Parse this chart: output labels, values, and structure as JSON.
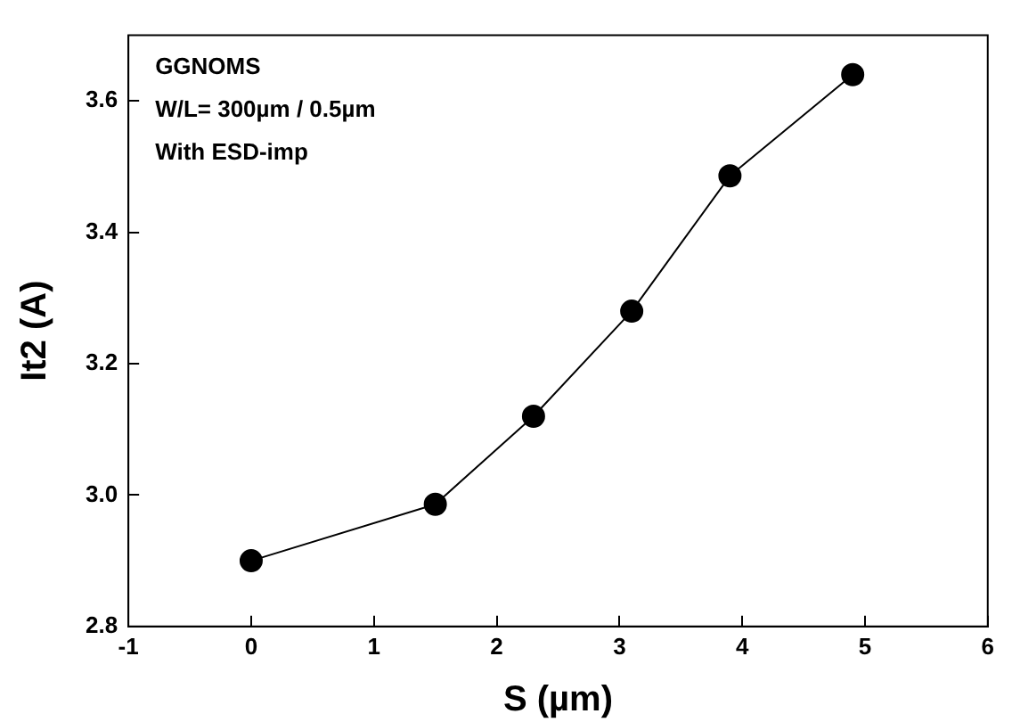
{
  "chart_data": {
    "type": "line",
    "xlabel": "S (µm)",
    "ylabel": "It2 (A)",
    "annotations": [
      "GGNOMS",
      "W/L= 300µm / 0.5µm",
      "With ESD-imp"
    ],
    "x": [
      0,
      1.5,
      2.3,
      3.1,
      3.9,
      4.9
    ],
    "series": [
      {
        "color": "#000000",
        "values": [
          2.9,
          2.986,
          3.12,
          3.28,
          3.486,
          3.64
        ]
      }
    ],
    "xlim": [
      -1,
      6
    ],
    "xticks": [
      -1,
      0,
      1,
      2,
      3,
      4,
      5,
      6
    ],
    "ylim": [
      2.8,
      3.7
    ],
    "yticks": [
      {
        "value": 2.8,
        "label": "2.8"
      },
      {
        "value": 3.0,
        "label": "3.0"
      },
      {
        "value": 3.2,
        "label": "3.2"
      },
      {
        "value": 3.4,
        "label": "3.4"
      },
      {
        "value": 3.6,
        "label": "3.6"
      }
    ],
    "grid": false,
    "legend": false,
    "marker": "circle",
    "line_style": "solid"
  }
}
